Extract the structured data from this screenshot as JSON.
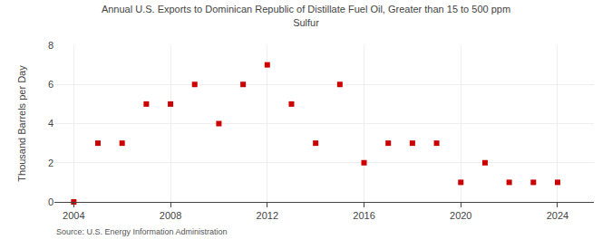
{
  "chart_data": {
    "type": "scatter",
    "title": "Annual U.S. Exports to Dominican Republic of Distillate Fuel Oil, Greater than 15 to 500 ppm\nSulfur",
    "ylabel": "Thousand Barrels per Day",
    "annotations": [
      "Source: U.S. Energy Information Administration"
    ],
    "x": [
      2004,
      2005,
      2006,
      2007,
      2008,
      2009,
      2010,
      2011,
      2012,
      2013,
      2014,
      2015,
      2016,
      2017,
      2018,
      2019,
      2020,
      2021,
      2022,
      2023,
      2024
    ],
    "values": [
      0,
      3,
      3,
      5,
      5,
      6,
      4,
      6,
      7,
      5,
      3,
      6,
      2,
      3,
      3,
      3,
      1,
      2,
      1,
      1,
      1
    ],
    "color": "#cc0000",
    "marker": "square",
    "xlim": [
      2003.2,
      2025.5
    ],
    "xticks": [
      2004,
      2008,
      2012,
      2016,
      2020,
      2024
    ],
    "ylim": [
      0,
      8
    ],
    "yticks": [
      0,
      2,
      4,
      6,
      8
    ],
    "grid": true
  }
}
